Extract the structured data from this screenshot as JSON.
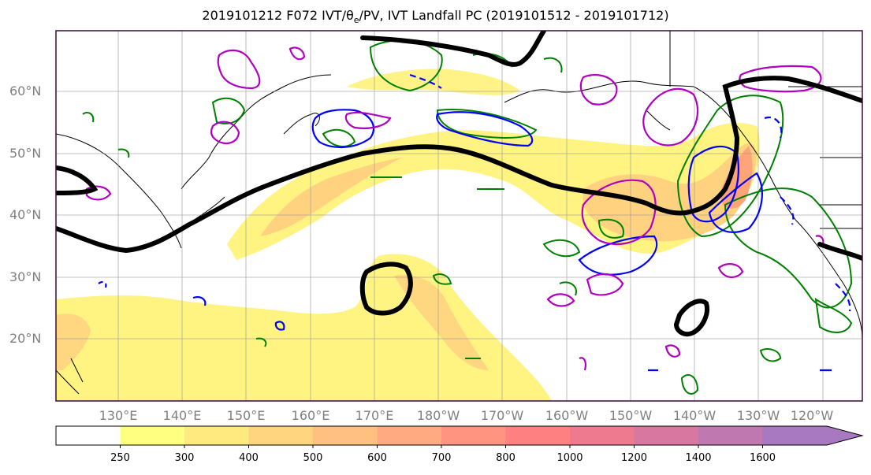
{
  "title": "2019101212 F072 IVT/θe/PV, IVT Landfall PC (2019101512 - 2019101712)",
  "lat_labels": [
    "60°N",
    "50°N",
    "40°N",
    "30°N",
    "20°N"
  ],
  "lon_labels": [
    "130°E",
    "140°E",
    "150°E",
    "160°E",
    "170°E",
    "180°W",
    "170°W",
    "160°W",
    "150°W",
    "140°W",
    "130°W",
    "120°W"
  ],
  "colorbar": {
    "ticks": [
      "250",
      "300",
      "400",
      "500",
      "600",
      "700",
      "800",
      "1000",
      "1200",
      "1400",
      "1600"
    ],
    "colors": [
      "#ffffff",
      "#ffff80",
      "#ffea80",
      "#ffd580",
      "#ffc080",
      "#ffaa80",
      "#ff9580",
      "#ff8080",
      "#ee7a90",
      "#d878a0",
      "#c078b0",
      "#a878c0"
    ],
    "extend": "max"
  },
  "colors": {
    "frame": "#3c0a3c",
    "ivt_fill_light": "#fff27a",
    "ivt_fill_mid": "#ffd080",
    "ivt_fill_high": "#ff9e78",
    "theta_e_contour": "#000000",
    "pv_contour_green": "#008000",
    "pv_contour_blue": "#0000ff",
    "pc_contour_magenta": "#b000c0"
  }
}
